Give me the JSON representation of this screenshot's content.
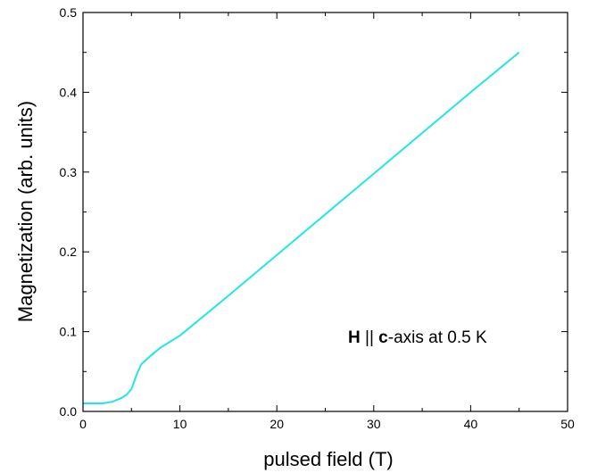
{
  "chart_data": {
    "type": "line",
    "xlabel": "pulsed field (T)",
    "ylabel": "Magnetization (arb. units)",
    "xlim": [
      0,
      50
    ],
    "ylim": [
      0,
      0.5
    ],
    "x_ticks": [
      0,
      10,
      20,
      30,
      40,
      50
    ],
    "y_ticks": [
      0.0,
      0.1,
      0.2,
      0.3,
      0.4,
      0.5
    ],
    "x_tick_labels": [
      "0",
      "10",
      "20",
      "30",
      "40",
      "50"
    ],
    "y_tick_labels": [
      "0.0",
      "0.1",
      "0.2",
      "0.3",
      "0.4",
      "0.5"
    ],
    "grid": false,
    "annotation": {
      "parts": [
        {
          "text": "H",
          "bold": true
        },
        {
          "text": " || ",
          "bold": false
        },
        {
          "text": "c",
          "bold": true
        },
        {
          "text": "-axis at 0.5 K",
          "bold": false
        }
      ]
    },
    "series": [
      {
        "color": "#22e6e6",
        "x": [
          0,
          1,
          2,
          3,
          4,
          4.5,
          5,
          5.5,
          6,
          7,
          8,
          10,
          15,
          20,
          25,
          30,
          35,
          40,
          45
        ],
        "y": [
          0.01,
          0.01,
          0.01,
          0.012,
          0.017,
          0.021,
          0.028,
          0.045,
          0.059,
          0.07,
          0.08,
          0.095,
          0.145,
          0.196,
          0.247,
          0.298,
          0.349,
          0.4,
          0.45
        ]
      }
    ]
  }
}
